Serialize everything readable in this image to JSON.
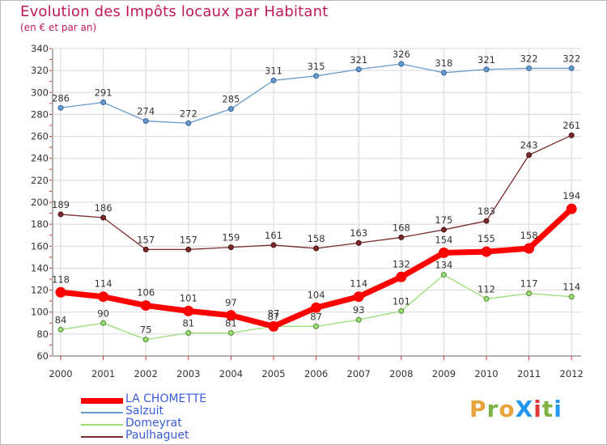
{
  "title": "Evolution des Impôts locaux par Habitant",
  "subtitle": "(en € et par an)",
  "logo": {
    "text": "ProXiti",
    "letters": [
      "P",
      "r",
      "o",
      "X",
      "i",
      "t",
      "i"
    ],
    "colors": [
      "#e8a33d",
      "#7cb342",
      "#e8a33d",
      "#2196f3",
      "#e53935",
      "#7cb342",
      "#2196f3"
    ]
  },
  "chart_data": {
    "type": "line",
    "title": "Evolution des Impôts locaux par Habitant",
    "subtitle": "(en € et par an)",
    "xlabel": "",
    "ylabel": "",
    "ylim": [
      60,
      340
    ],
    "yticks": [
      60,
      80,
      100,
      120,
      140,
      160,
      180,
      200,
      220,
      240,
      260,
      280,
      300,
      320,
      340
    ],
    "x": [
      "2000",
      "2001",
      "2002",
      "2003",
      "2004",
      "2005",
      "2006",
      "2007",
      "2008",
      "2009",
      "2010",
      "2011",
      "2012"
    ],
    "legend_position": "bottom-left",
    "series": [
      {
        "name": "LA CHOMETTE",
        "color": "#ff0000",
        "values": [
          118,
          114,
          106,
          101,
          97,
          87,
          104,
          114,
          132,
          154,
          155,
          158,
          194
        ]
      },
      {
        "name": "Salzuit",
        "color": "#6699cc",
        "values": [
          286,
          291,
          274,
          272,
          285,
          311,
          315,
          321,
          326,
          318,
          321,
          322,
          322
        ]
      },
      {
        "name": "Domeyrat",
        "color": "#99dd77",
        "values": [
          84,
          90,
          75,
          81,
          81,
          87,
          87,
          93,
          101,
          134,
          112,
          117,
          114
        ]
      },
      {
        "name": "Paulhaguet",
        "color": "#7a2a2a",
        "values": [
          189,
          186,
          157,
          157,
          159,
          161,
          158,
          163,
          168,
          175,
          183,
          243,
          261
        ]
      }
    ]
  }
}
